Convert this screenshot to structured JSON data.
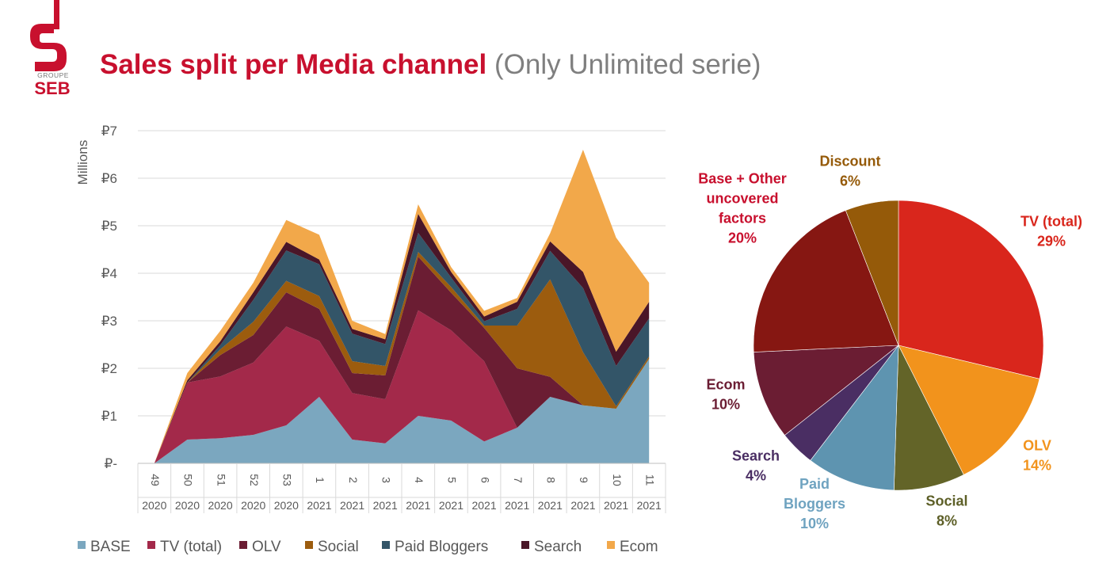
{
  "logo": {
    "line1": "GROUPE",
    "line2": "SEB",
    "color": "#c8102e"
  },
  "title": {
    "main": "Sales split per Media channel",
    "sub": "(Only Unlimited serie)"
  },
  "chart_data": [
    {
      "type": "area",
      "stacked": true,
      "ylabel": "Millions",
      "ylim": [
        0,
        7
      ],
      "yticks": [
        "₽-",
        "₽1",
        "₽2",
        "₽3",
        "₽4",
        "₽5",
        "₽6",
        "₽7"
      ],
      "grid": true,
      "legend_position": "bottom",
      "categories": [
        {
          "week": "49",
          "year": "2020"
        },
        {
          "week": "50",
          "year": "2020"
        },
        {
          "week": "51",
          "year": "2020"
        },
        {
          "week": "52",
          "year": "2020"
        },
        {
          "week": "53",
          "year": "2020"
        },
        {
          "week": "1",
          "year": "2021"
        },
        {
          "week": "2",
          "year": "2021"
        },
        {
          "week": "3",
          "year": "2021"
        },
        {
          "week": "4",
          "year": "2021"
        },
        {
          "week": "5",
          "year": "2021"
        },
        {
          "week": "6",
          "year": "2021"
        },
        {
          "week": "7",
          "year": "2021"
        },
        {
          "week": "8",
          "year": "2021"
        },
        {
          "week": "9",
          "year": "2021"
        },
        {
          "week": "10",
          "year": "2021"
        },
        {
          "week": "11",
          "year": "2021"
        }
      ],
      "series": [
        {
          "name": "BASE",
          "color": "#7ba7bf",
          "values": [
            0,
            0.5,
            0.53,
            0.6,
            0.8,
            1.4,
            0.5,
            0.42,
            1.0,
            0.9,
            0.46,
            0.75,
            1.4,
            1.22,
            1.15,
            2.2
          ]
        },
        {
          "name": "TV (total)",
          "color": "#a3294a",
          "values": [
            0,
            1.2,
            1.3,
            1.52,
            2.08,
            1.18,
            0.98,
            0.93,
            2.22,
            1.9,
            1.69,
            0,
            0,
            0,
            0,
            0
          ]
        },
        {
          "name": "OLV",
          "color": "#6b1d33",
          "values": [
            0,
            0,
            0.45,
            0.58,
            0.72,
            0.67,
            0.42,
            0.5,
            1.13,
            0.79,
            0.7,
            1.25,
            0.42,
            0,
            0,
            0
          ]
        },
        {
          "name": "Social",
          "color": "#9c5c0e",
          "values": [
            0,
            0,
            0.12,
            0.28,
            0.24,
            0.27,
            0.25,
            0.2,
            0.1,
            0.12,
            0.05,
            0.9,
            2.05,
            1.12,
            0.05,
            0.05
          ]
        },
        {
          "name": "Paid Bloggers",
          "color": "#335568",
          "values": [
            0,
            0,
            0.09,
            0.46,
            0.64,
            0.67,
            0.58,
            0.46,
            0.4,
            0.2,
            0.09,
            0.35,
            0.6,
            1.35,
            0.85,
            0.8
          ]
        },
        {
          "name": "Search",
          "color": "#4a1628",
          "values": [
            0,
            0.05,
            0.08,
            0.16,
            0.18,
            0.1,
            0.1,
            0.1,
            0.4,
            0.12,
            0.1,
            0.15,
            0.2,
            0.34,
            0.3,
            0.35
          ]
        },
        {
          "name": "Ecom",
          "color": "#f2a84a",
          "values": [
            0,
            0.15,
            0.22,
            0.2,
            0.46,
            0.52,
            0.17,
            0.11,
            0.2,
            0.1,
            0.12,
            0.08,
            0.17,
            2.57,
            2.4,
            0.4
          ]
        }
      ]
    },
    {
      "type": "pie",
      "slices": [
        {
          "label": [
            "TV (total)"
          ],
          "value": 29,
          "display": "29%",
          "color": "#d9261c",
          "label_color": "#d9261c"
        },
        {
          "label": [
            "OLV"
          ],
          "value": 14,
          "display": "14%",
          "color": "#f2931c",
          "label_color": "#f2931c"
        },
        {
          "label": [
            "Social"
          ],
          "value": 8,
          "display": "8%",
          "color": "#636428",
          "label_color": "#5d5f27"
        },
        {
          "label": [
            "Paid",
            "Bloggers"
          ],
          "value": 10,
          "display": "10%",
          "color": "#5e94b0",
          "label_color": "#6fa3c0"
        },
        {
          "label": [
            "Search"
          ],
          "value": 4,
          "display": "4%",
          "color": "#4a2e63",
          "label_color": "#4a2e63"
        },
        {
          "label": [
            "Ecom"
          ],
          "value": 10,
          "display": "10%",
          "color": "#6b1d33",
          "label_color": "#6b1d33"
        },
        {
          "label": [
            "Base + Other",
            "uncovered",
            "factors"
          ],
          "value": 20,
          "display": "20%",
          "color": "#861712",
          "label_color": "#c8102e"
        },
        {
          "label": [
            "Discount"
          ],
          "value": 6,
          "display": "6%",
          "color": "#955a09",
          "label_color": "#955a09"
        }
      ]
    }
  ]
}
